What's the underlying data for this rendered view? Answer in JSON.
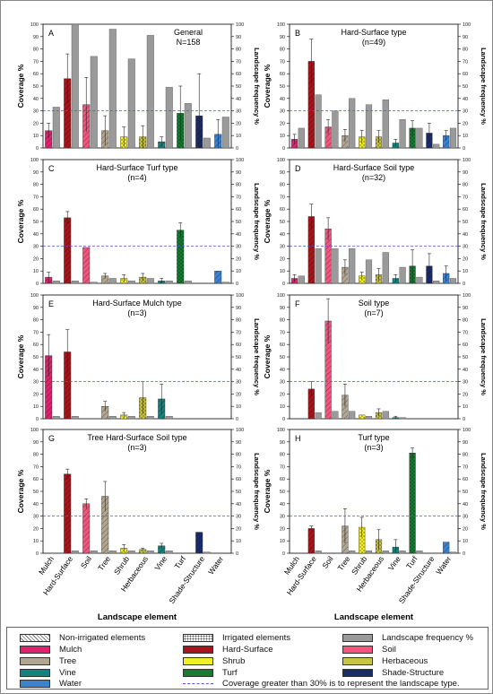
{
  "figure": {
    "xlabel": "Landscape element",
    "ylabel_left": "Coverage %",
    "ylabel_right": "Landscape frequency %",
    "categories": [
      "Mulch",
      "Hard-Surface",
      "Soil",
      "Tree",
      "Shrub",
      "Herbaceous",
      "Vine",
      "Turf",
      "Shade-Structure",
      "Water"
    ],
    "colors": {
      "Mulch": "#e0226e",
      "Hard-Surface": "#a4161b",
      "Soil": "#f2557e",
      "Tree": "#b1a690",
      "Shrub": "#f1ef28",
      "Herbaceous": "#c9c542",
      "Vine": "#11857d",
      "Turf": "#177c33",
      "Shade-Structure": "#1b2c6e",
      "Water": "#3c82cf",
      "frequency": "#9a9a9a"
    },
    "threshold": 30
  },
  "legend": {
    "items": [
      {
        "label": "Non-irrigated elements",
        "swatch": "hatch"
      },
      {
        "label": "Irrigated elements",
        "swatch": "dots"
      },
      {
        "label": "Landscape frequency %",
        "swatch": "frequency"
      },
      {
        "label": "Mulch",
        "swatch": "Mulch"
      },
      {
        "label": "Hard-Surface",
        "swatch": "Hard-Surface"
      },
      {
        "label": "Soil",
        "swatch": "Soil"
      },
      {
        "label": "Tree",
        "swatch": "Tree"
      },
      {
        "label": "Shrub",
        "swatch": "Shrub"
      },
      {
        "label": "Herbaceous",
        "swatch": "Herbaceous"
      },
      {
        "label": "Vine",
        "swatch": "Vine"
      },
      {
        "label": "Turf",
        "swatch": "Turf"
      },
      {
        "label": "Shade-Structure",
        "swatch": "Shade-Structure"
      },
      {
        "label": "Water",
        "swatch": "Water"
      },
      {
        "label": "Coverage greater than 30% is to represent the landscape type.",
        "swatch": "dash"
      }
    ]
  },
  "chart_data": [
    {
      "type": "bar",
      "letter": "A",
      "title": "General",
      "subtitle": "N=158",
      "ylim": [
        0,
        100
      ],
      "y2lim": [
        0,
        100
      ],
      "series": [
        {
          "name": "Coverage %",
          "values": [
            14,
            56,
            35,
            14,
            9,
            9,
            5,
            28,
            26,
            11
          ],
          "errors": [
            6,
            20,
            22,
            12,
            8,
            9,
            4,
            22,
            34,
            12
          ]
        },
        {
          "name": "Landscape frequency %",
          "values": [
            33,
            100,
            74,
            96,
            72,
            91,
            49,
            36,
            8,
            25
          ]
        }
      ]
    },
    {
      "type": "bar",
      "letter": "B",
      "title": "Hard-Surface type",
      "subtitle": "(n=49)",
      "ylim": [
        0,
        100
      ],
      "y2lim": [
        0,
        100
      ],
      "series": [
        {
          "name": "Coverage %",
          "values": [
            7,
            70,
            17,
            10,
            9,
            9,
            4,
            16,
            12,
            10
          ],
          "errors": [
            4,
            18,
            6,
            5,
            5,
            5,
            3,
            6,
            8,
            4
          ]
        },
        {
          "name": "Landscape frequency %",
          "values": [
            16,
            43,
            30,
            40,
            35,
            39,
            23,
            16,
            3,
            16
          ]
        }
      ]
    },
    {
      "type": "bar",
      "letter": "C",
      "title": "Hard-Surface Turf type",
      "subtitle": "(n=4)",
      "ylim": [
        0,
        100
      ],
      "y2lim": [
        0,
        100
      ],
      "series": [
        {
          "name": "Coverage %",
          "values": [
            5,
            53,
            29,
            6,
            4,
            5,
            2,
            43,
            0,
            10
          ],
          "errors": [
            4,
            5,
            0,
            2,
            3,
            3,
            2,
            6,
            0,
            0
          ]
        },
        {
          "name": "Landscape frequency %",
          "values": [
            2,
            2,
            1,
            4,
            2,
            4,
            2,
            2,
            0,
            1
          ]
        }
      ]
    },
    {
      "type": "bar",
      "letter": "D",
      "title": "Hard-Surface Soil type",
      "subtitle": "(n=32)",
      "ylim": [
        0,
        100
      ],
      "y2lim": [
        0,
        100
      ],
      "series": [
        {
          "name": "Coverage %",
          "values": [
            4,
            54,
            44,
            13,
            6,
            7,
            4,
            14,
            14,
            8
          ],
          "errors": [
            3,
            10,
            9,
            6,
            3,
            5,
            3,
            13,
            10,
            6
          ]
        },
        {
          "name": "Landscape frequency %",
          "values": [
            6,
            28,
            28,
            28,
            19,
            25,
            13,
            5,
            2,
            4
          ]
        }
      ]
    },
    {
      "type": "bar",
      "letter": "E",
      "title": "Hard-Surface Mulch type",
      "subtitle": "(n=3)",
      "ylim": [
        0,
        100
      ],
      "y2lim": [
        0,
        100
      ],
      "series": [
        {
          "name": "Coverage %",
          "values": [
            51,
            54,
            0,
            10,
            3,
            17,
            16,
            0,
            0,
            0
          ],
          "errors": [
            17,
            18,
            0,
            4,
            2,
            13,
            12,
            0,
            0,
            0
          ]
        },
        {
          "name": "Landscape frequency %",
          "values": [
            2,
            2,
            0,
            2,
            2,
            2,
            2,
            0,
            0,
            0
          ]
        }
      ]
    },
    {
      "type": "bar",
      "letter": "F",
      "title": "Soil type",
      "subtitle": "(n=7)",
      "ylim": [
        0,
        100
      ],
      "y2lim": [
        0,
        100
      ],
      "series": [
        {
          "name": "Coverage %",
          "values": [
            0,
            24,
            79,
            19,
            3,
            5,
            1,
            0,
            0,
            0
          ],
          "errors": [
            0,
            6,
            18,
            9,
            0,
            3,
            1,
            0,
            0,
            0
          ]
        },
        {
          "name": "Landscape frequency %",
          "values": [
            0,
            5,
            6,
            6,
            2,
            6,
            1,
            0,
            0,
            0
          ]
        }
      ]
    },
    {
      "type": "bar",
      "letter": "G",
      "title": "Tree Hard-Surface Soil type",
      "subtitle": "(n=3)",
      "ylim": [
        0,
        100
      ],
      "y2lim": [
        0,
        100
      ],
      "series": [
        {
          "name": "Coverage %",
          "values": [
            0,
            64,
            40,
            46,
            4,
            3,
            6,
            0,
            17,
            0
          ],
          "errors": [
            0,
            4,
            4,
            12,
            3,
            1,
            2,
            0,
            0,
            0
          ]
        },
        {
          "name": "Landscape frequency %",
          "values": [
            0,
            2,
            2,
            2,
            2,
            2,
            2,
            0,
            1,
            0
          ]
        }
      ]
    },
    {
      "type": "bar",
      "letter": "H",
      "title": "Turf type",
      "subtitle": "(n=3)",
      "ylim": [
        0,
        100
      ],
      "y2lim": [
        0,
        100
      ],
      "series": [
        {
          "name": "Coverage %",
          "values": [
            0,
            20,
            0,
            22,
            21,
            11,
            5,
            81,
            0,
            9
          ],
          "errors": [
            0,
            2,
            0,
            14,
            8,
            8,
            6,
            4,
            0,
            0
          ]
        },
        {
          "name": "Landscape frequency %",
          "values": [
            0,
            2,
            0,
            2,
            2,
            2,
            2,
            2,
            0,
            1
          ]
        }
      ]
    }
  ]
}
